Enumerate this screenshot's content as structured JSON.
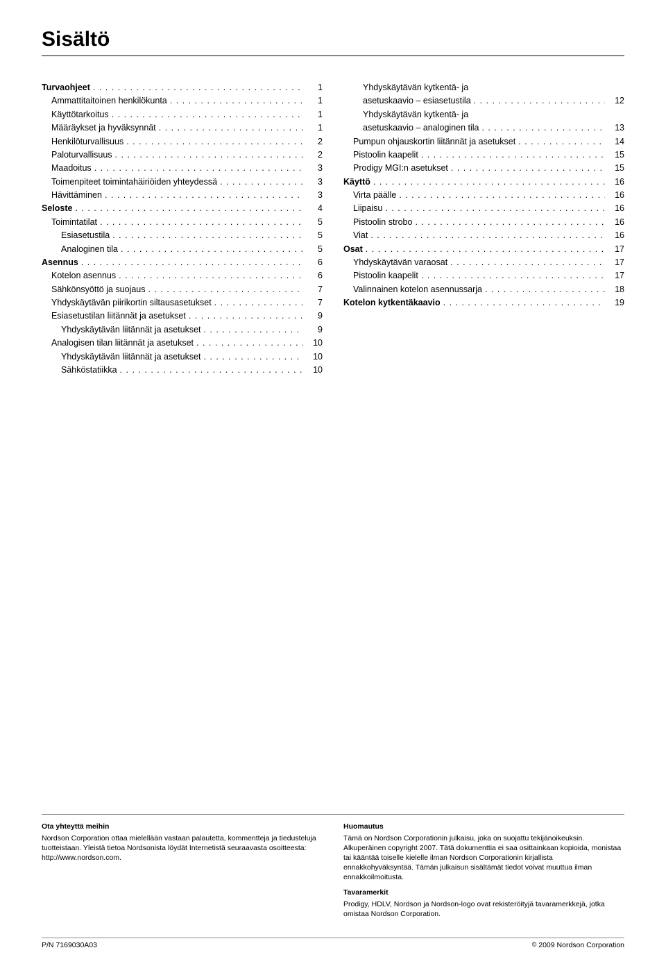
{
  "title": "Sisältö",
  "toc_left": [
    {
      "label": "Turvaohjeet",
      "page": "1",
      "bold": true,
      "indent": 0
    },
    {
      "label": "Ammattitaitoinen henkilökunta",
      "page": "1",
      "bold": false,
      "indent": 1
    },
    {
      "label": "Käyttötarkoitus",
      "page": "1",
      "bold": false,
      "indent": 1
    },
    {
      "label": "Määräykset ja hyväksynnät",
      "page": "1",
      "bold": false,
      "indent": 1
    },
    {
      "label": "Henkilöturvallisuus",
      "page": "2",
      "bold": false,
      "indent": 1
    },
    {
      "label": "Paloturvallisuus",
      "page": "2",
      "bold": false,
      "indent": 1
    },
    {
      "label": "Maadoitus",
      "page": "3",
      "bold": false,
      "indent": 1
    },
    {
      "label": "Toimenpiteet toimintahäiriöiden yhteydessä",
      "page": "3",
      "bold": false,
      "indent": 1
    },
    {
      "label": "Hävittäminen",
      "page": "3",
      "bold": false,
      "indent": 1
    },
    {
      "label": "Seloste",
      "page": "4",
      "bold": true,
      "indent": 0
    },
    {
      "label": "Toimintatilat",
      "page": "5",
      "bold": false,
      "indent": 1
    },
    {
      "label": "Esiasetustila",
      "page": "5",
      "bold": false,
      "indent": 2
    },
    {
      "label": "Analoginen tila",
      "page": "5",
      "bold": false,
      "indent": 2
    },
    {
      "label": "Asennus",
      "page": "6",
      "bold": true,
      "indent": 0
    },
    {
      "label": "Kotelon asennus",
      "page": "6",
      "bold": false,
      "indent": 1
    },
    {
      "label": "Sähkönsyöttö ja suojaus",
      "page": "7",
      "bold": false,
      "indent": 1
    },
    {
      "label": "Yhdyskäytävän piirikortin siltausasetukset",
      "page": "7",
      "bold": false,
      "indent": 1
    },
    {
      "label": "Esiasetustilan liitännät ja asetukset",
      "page": "9",
      "bold": false,
      "indent": 1
    },
    {
      "label": "Yhdyskäytävän liitännät ja asetukset",
      "page": "9",
      "bold": false,
      "indent": 2
    },
    {
      "label": "Analogisen tilan liitännät ja asetukset",
      "page": "10",
      "bold": false,
      "indent": 1
    },
    {
      "label": "Yhdyskäytävän liitännät ja asetukset",
      "page": "10",
      "bold": false,
      "indent": 2
    },
    {
      "label": "Sähköstatiikka",
      "page": "10",
      "bold": false,
      "indent": 2
    }
  ],
  "toc_right": [
    {
      "label": "Yhdyskäytävän kytkentä- ja asetuskaavio – esiasetustila",
      "page": "12",
      "bold": false,
      "indent": 2,
      "wrap": true
    },
    {
      "label": "Yhdyskäytävän kytkentä- ja asetuskaavio – analoginen tila",
      "page": "13",
      "bold": false,
      "indent": 2,
      "wrap": true
    },
    {
      "label": "Pumpun ohjauskortin liitännät ja asetukset",
      "page": "14",
      "bold": false,
      "indent": 1
    },
    {
      "label": "Pistoolin kaapelit",
      "page": "15",
      "bold": false,
      "indent": 1
    },
    {
      "label": "Prodigy MGI:n asetukset",
      "page": "15",
      "bold": false,
      "indent": 1
    },
    {
      "label": "Käyttö",
      "page": "16",
      "bold": true,
      "indent": 0
    },
    {
      "label": "Virta päälle",
      "page": "16",
      "bold": false,
      "indent": 1
    },
    {
      "label": "Liipaisu",
      "page": "16",
      "bold": false,
      "indent": 1
    },
    {
      "label": "Pistoolin strobo",
      "page": "16",
      "bold": false,
      "indent": 1
    },
    {
      "label": "Viat",
      "page": "16",
      "bold": false,
      "indent": 1
    },
    {
      "label": "Osat",
      "page": "17",
      "bold": true,
      "indent": 0
    },
    {
      "label": "Yhdyskäytävän varaosat",
      "page": "17",
      "bold": false,
      "indent": 1
    },
    {
      "label": "Pistoolin kaapelit",
      "page": "17",
      "bold": false,
      "indent": 1
    },
    {
      "label": "Valinnainen kotelon asennussarja",
      "page": "18",
      "bold": false,
      "indent": 1
    },
    {
      "label": "Kotelon kytkentäkaavio",
      "page": "19",
      "bold": true,
      "indent": 0
    }
  ],
  "footer": {
    "left_head": "Ota yhteyttä meihin",
    "left_body": "Nordson Corporation ottaa mielellään vastaan palautetta, kommentteja ja tiedusteluja tuotteistaan. Yleistä tietoa Nordsonista löydät Internetistä seuraavasta osoitteesta: http://www.nordson.com.",
    "right_head": "Huomautus",
    "right_body1": "Tämä on Nordson Corporationin julkaisu, joka on suojattu tekijänoikeuksin. Alkuperäinen copyright 2007. Tätä dokumenttia ei saa osittainkaan kopioida, monistaa tai kääntää toiselle kielelle ilman Nordson Corporationin kirjallista ennakkohyväksyntää. Tämän julkaisun sisältämät tiedot voivat muuttua ilman ennakkoilmoitusta.",
    "right_head2": "Tavaramerkit",
    "right_body2": "Prodigy, HDLV, Nordson ja Nordson-logo ovat rekisteröityjä tavaramerkkejä, jotka omistaa Nordson Corporation."
  },
  "bottom": {
    "left": "P/N 7169030A03",
    "right": "2009 Nordson Corporation"
  }
}
